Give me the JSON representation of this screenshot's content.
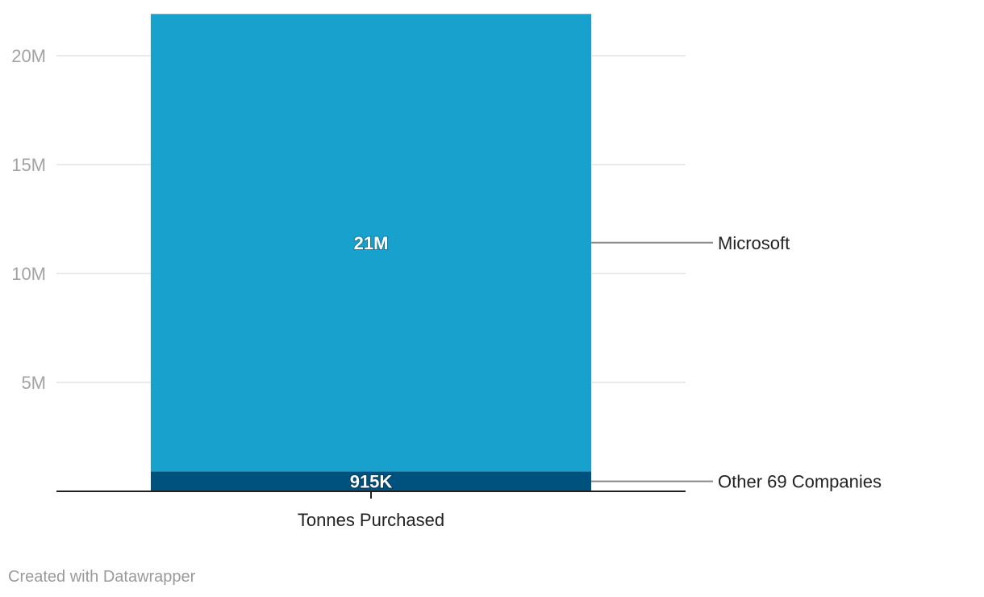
{
  "chart_data": {
    "type": "bar",
    "stacked": true,
    "categories": [
      "Tonnes Purchased"
    ],
    "series": [
      {
        "name": "Other 69 Companies",
        "values": [
          915000
        ],
        "value_label": "915K",
        "color": "#00527e"
      },
      {
        "name": "Microsoft",
        "values": [
          21000000
        ],
        "value_label": "21M",
        "color": "#19a1cd"
      }
    ],
    "y_ticks": [
      {
        "value": 5000000,
        "label": "5M"
      },
      {
        "value": 10000000,
        "label": "10M"
      },
      {
        "value": 15000000,
        "label": "15M"
      },
      {
        "value": 20000000,
        "label": "20M"
      }
    ],
    "ylim": [
      0,
      22200000
    ],
    "title": "",
    "xlabel": "",
    "ylabel": "",
    "grid": true,
    "legend": "direct labels, right"
  },
  "footer": {
    "credit": "Created with Datawrapper"
  }
}
